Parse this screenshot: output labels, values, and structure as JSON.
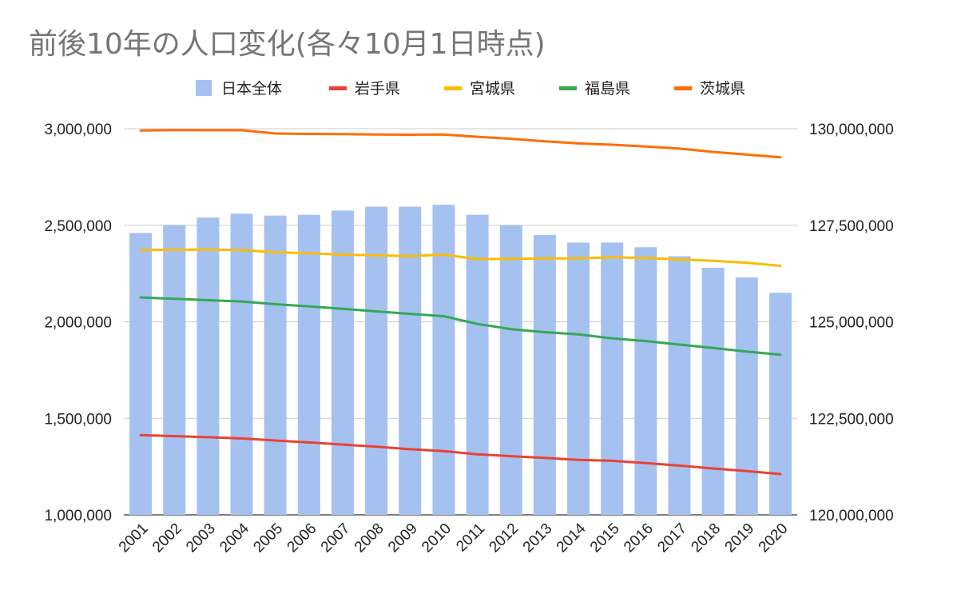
{
  "chart_data": {
    "type": "bar",
    "title": "前後10年の人口変化(各々10月1日時点)",
    "categories": [
      "2001",
      "2002",
      "2003",
      "2004",
      "2005",
      "2006",
      "2007",
      "2008",
      "2009",
      "2010",
      "2011",
      "2012",
      "2013",
      "2014",
      "2015",
      "2016",
      "2017",
      "2018",
      "2019",
      "2020"
    ],
    "left_axis": {
      "range": [
        1000000,
        3000000
      ],
      "ticks": [
        1000000,
        1500000,
        2000000,
        2500000,
        3000000
      ],
      "tick_labels": [
        "1,000,000",
        "1,500,000",
        "2,000,000",
        "2,500,000",
        "3,000,000"
      ]
    },
    "right_axis": {
      "range": [
        120000000,
        130000000
      ],
      "ticks": [
        120000000,
        122500000,
        125000000,
        127500000,
        130000000
      ],
      "tick_labels": [
        "120,000,000",
        "122,500,000",
        "125,000,000",
        "127,500,000",
        "130,000,000"
      ]
    },
    "grid": true,
    "legend_position": "top",
    "bar_series": {
      "name": "日本全体",
      "axis": "right",
      "color": "#a5c1f0",
      "values": [
        127300000,
        127500000,
        127700000,
        127800000,
        127750000,
        127770000,
        127880000,
        127980000,
        127980000,
        128030000,
        127770000,
        127500000,
        127250000,
        127050000,
        127050000,
        126930000,
        126700000,
        126400000,
        126150000,
        125750000
      ]
    },
    "line_series": [
      {
        "name": "岩手県",
        "axis": "left",
        "color": "#e94235",
        "values": [
          1413000,
          1408000,
          1402000,
          1396000,
          1385000,
          1375000,
          1364000,
          1353000,
          1340000,
          1330000,
          1314000,
          1304000,
          1295000,
          1285000,
          1280000,
          1268000,
          1255000,
          1240000,
          1227000,
          1211000
        ]
      },
      {
        "name": "宮城県",
        "axis": "left",
        "color": "#fbbc04",
        "values": [
          2371000,
          2373000,
          2374000,
          2372000,
          2360000,
          2355000,
          2348000,
          2344000,
          2340000,
          2348000,
          2325000,
          2326000,
          2328000,
          2328000,
          2334000,
          2330000,
          2323000,
          2316000,
          2306000,
          2290000
        ]
      },
      {
        "name": "福島県",
        "axis": "left",
        "color": "#34a853",
        "values": [
          2126000,
          2119000,
          2112000,
          2105000,
          2091000,
          2080000,
          2067000,
          2054000,
          2041000,
          2029000,
          1989000,
          1962000,
          1946000,
          1935000,
          1914000,
          1900000,
          1882000,
          1864000,
          1846000,
          1829000
        ]
      },
      {
        "name": "茨城県",
        "axis": "left",
        "color": "#ff6d01",
        "values": [
          2991000,
          2993000,
          2992000,
          2992000,
          2975000,
          2973000,
          2972000,
          2970000,
          2969000,
          2970000,
          2958000,
          2948000,
          2935000,
          2924000,
          2917000,
          2908000,
          2897000,
          2880000,
          2866000,
          2852000
        ]
      }
    ]
  }
}
